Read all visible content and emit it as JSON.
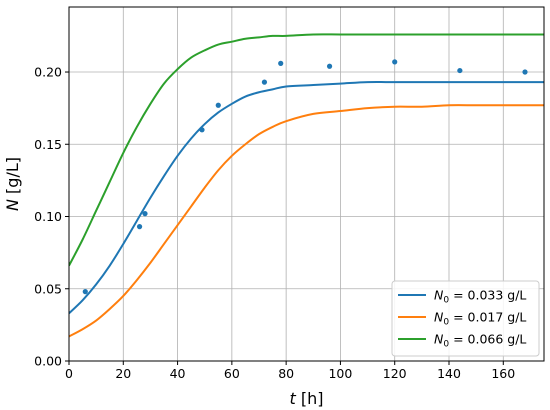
{
  "chart_data": {
    "type": "line",
    "title": "",
    "xlabel": {
      "var": "t",
      "unit": " [h]"
    },
    "ylabel": {
      "var": "N",
      "unit": " [g/L]"
    },
    "xlim": [
      0,
      175
    ],
    "ylim": [
      0,
      0.245
    ],
    "xticks": [
      0,
      20,
      40,
      60,
      80,
      100,
      120,
      140,
      160
    ],
    "yticks": [
      0.0,
      0.05,
      0.1,
      0.15,
      0.2
    ],
    "ytick_labels": [
      "0.00",
      "0.05",
      "0.10",
      "0.15",
      "0.20"
    ],
    "grid": true,
    "legend_position": "lower-right",
    "series": [
      {
        "name": "N0 = 0.033 g/L",
        "legend": {
          "sym": "N",
          "sub": "0",
          "rest": " = 0.033 g/L"
        },
        "color": "#1f77b4",
        "x": [
          0,
          5,
          10,
          15,
          20,
          25,
          30,
          35,
          40,
          45,
          50,
          55,
          60,
          65,
          70,
          75,
          80,
          90,
          100,
          110,
          120,
          130,
          140,
          150,
          160,
          175
        ],
        "y": [
          0.033,
          0.042,
          0.053,
          0.066,
          0.081,
          0.097,
          0.113,
          0.128,
          0.142,
          0.154,
          0.164,
          0.172,
          0.178,
          0.183,
          0.186,
          0.188,
          0.19,
          0.191,
          0.192,
          0.193,
          0.193,
          0.193,
          0.193,
          0.193,
          0.193,
          0.193
        ]
      },
      {
        "name": "N0 = 0.017 g/L",
        "legend": {
          "sym": "N",
          "sub": "0",
          "rest": " = 0.017 g/L"
        },
        "color": "#ff7f0e",
        "x": [
          0,
          5,
          10,
          15,
          20,
          25,
          30,
          35,
          40,
          45,
          50,
          55,
          60,
          65,
          70,
          75,
          80,
          90,
          100,
          110,
          120,
          130,
          140,
          150,
          160,
          175
        ],
        "y": [
          0.017,
          0.022,
          0.028,
          0.036,
          0.045,
          0.056,
          0.068,
          0.081,
          0.094,
          0.107,
          0.12,
          0.132,
          0.142,
          0.15,
          0.157,
          0.162,
          0.166,
          0.171,
          0.173,
          0.175,
          0.176,
          0.176,
          0.177,
          0.177,
          0.177,
          0.177
        ]
      },
      {
        "name": "N0 = 0.066 g/L",
        "legend": {
          "sym": "N",
          "sub": "0",
          "rest": " = 0.066 g/L"
        },
        "color": "#2ca02c",
        "x": [
          0,
          5,
          10,
          15,
          20,
          25,
          30,
          35,
          40,
          45,
          50,
          55,
          60,
          65,
          70,
          75,
          80,
          90,
          100,
          110,
          120,
          130,
          140,
          150,
          160,
          175
        ],
        "y": [
          0.066,
          0.084,
          0.104,
          0.124,
          0.144,
          0.162,
          0.178,
          0.192,
          0.202,
          0.21,
          0.215,
          0.219,
          0.221,
          0.223,
          0.224,
          0.225,
          0.225,
          0.226,
          0.226,
          0.226,
          0.226,
          0.226,
          0.226,
          0.226,
          0.226,
          0.226
        ]
      }
    ],
    "points": {
      "color": "#1f77b4",
      "x": [
        6,
        26,
        28,
        49,
        55,
        72,
        78,
        96,
        120,
        144,
        168
      ],
      "y": [
        0.048,
        0.093,
        0.102,
        0.16,
        0.177,
        0.193,
        0.206,
        0.204,
        0.207,
        0.201,
        0.2
      ]
    }
  }
}
